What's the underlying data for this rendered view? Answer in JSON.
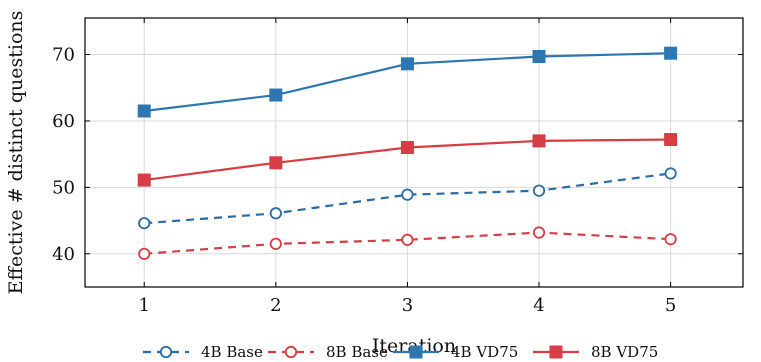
{
  "chart_data": {
    "type": "line",
    "xlabel": "Iteration",
    "ylabel": "Effective # distinct questions",
    "x": [
      1,
      2,
      3,
      4,
      5
    ],
    "xlim": [
      0.55,
      5.55
    ],
    "ylim": [
      35,
      75.5
    ],
    "xticks": [
      1,
      2,
      3,
      4,
      5
    ],
    "yticks": [
      40,
      50,
      60,
      70
    ],
    "grid": true,
    "legend_position": "bottom",
    "series": [
      {
        "name": "4B Base",
        "values": [
          44.6,
          46.1,
          48.9,
          49.5,
          52.1
        ],
        "color": "#2b6ca6",
        "line": "dashed",
        "marker": "open-circle"
      },
      {
        "name": "8B Base",
        "values": [
          40.0,
          41.5,
          42.1,
          43.2,
          42.2
        ],
        "color": "#d63d45",
        "line": "dashed",
        "marker": "open-circle"
      },
      {
        "name": "4B VD75",
        "values": [
          61.5,
          63.9,
          68.6,
          69.7,
          70.2
        ],
        "color": "#2e76b0",
        "line": "solid",
        "marker": "filled-square"
      },
      {
        "name": "8B VD75",
        "values": [
          51.1,
          53.7,
          56.0,
          57.0,
          57.2
        ],
        "color": "#d63d45",
        "line": "solid",
        "marker": "filled-square"
      }
    ]
  }
}
